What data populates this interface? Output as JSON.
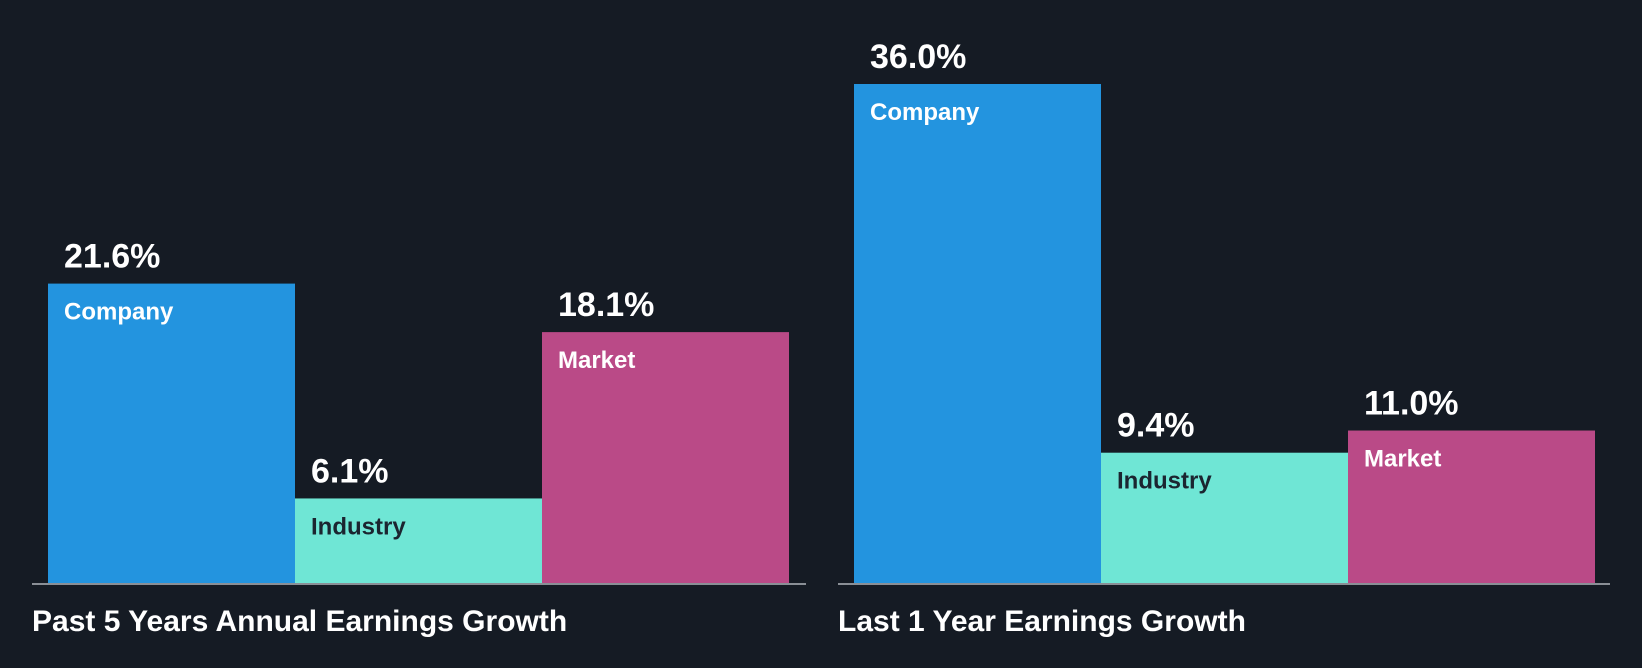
{
  "colors": {
    "background": "#151b24",
    "company": "#2394df",
    "industry": "#6fe6d5",
    "market": "#ba4a87",
    "baseline": "#8a8f96",
    "value_text": "#ffffff",
    "dark_label": "#1b2530"
  },
  "chart_data": [
    {
      "type": "bar",
      "title": "Past 5 Years Annual Earnings Growth",
      "categories": [
        "Company",
        "Industry",
        "Market"
      ],
      "values": [
        21.6,
        6.1,
        18.1
      ],
      "value_labels": [
        "21.6%",
        "6.1%",
        "18.1%"
      ],
      "ylim": [
        0,
        36.0
      ],
      "grid": false,
      "legend": "none"
    },
    {
      "type": "bar",
      "title": "Last 1 Year Earnings Growth",
      "categories": [
        "Company",
        "Industry",
        "Market"
      ],
      "values": [
        36.0,
        9.4,
        11.0
      ],
      "value_labels": [
        "36.0%",
        "9.4%",
        "11.0%"
      ],
      "ylim": [
        0,
        36.0
      ],
      "grid": false,
      "legend": "none"
    }
  ]
}
